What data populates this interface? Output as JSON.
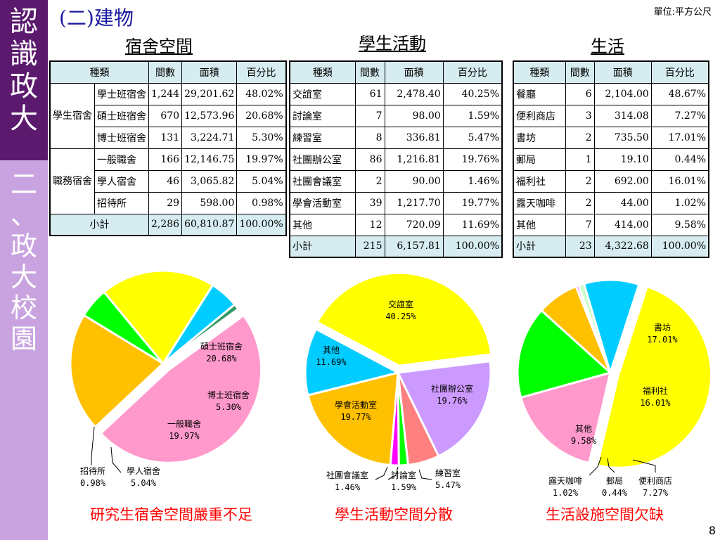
{
  "sidebar": {
    "top_chars": [
      "認",
      "識",
      "政",
      "大"
    ],
    "bottom_chars": [
      "二",
      "、",
      "政",
      "大",
      "校",
      "園"
    ]
  },
  "heading": "(二)建物",
  "unit": "單位:平方公尺",
  "page_number": "8",
  "columns": [
    "種類",
    "間數",
    "面積",
    "百分比"
  ],
  "dorm": {
    "title": "宿舍空間",
    "groups": [
      {
        "label": "學生宿舍",
        "rows": [
          [
            "學士班宿舍",
            "1,244",
            "29,201.62",
            "48.02%"
          ],
          [
            "碩士班宿舍",
            "670",
            "12,573.96",
            "20.68%"
          ],
          [
            "博士班宿舍",
            "131",
            "3,224.71",
            "5.30%"
          ]
        ]
      },
      {
        "label": "職務宿舍",
        "rows": [
          [
            "一般職舍",
            "166",
            "12,146.75",
            "19.97%"
          ],
          [
            "學人宿舍",
            "46",
            "3,065.82",
            "5.04%"
          ],
          [
            "招待所",
            "29",
            "598.00",
            "0.98%"
          ]
        ]
      }
    ],
    "total": [
      "小計",
      "2,286",
      "60,810.87",
      "100.00%"
    ]
  },
  "activity": {
    "title": "學生活動",
    "rows": [
      [
        "交誼室",
        "61",
        "2,478.40",
        "40.25%"
      ],
      [
        "討論室",
        "7",
        "98.00",
        "1.59%"
      ],
      [
        "練習室",
        "8",
        "336.81",
        "5.47%"
      ],
      [
        "社團辦公室",
        "86",
        "1,216.81",
        "19.76%"
      ],
      [
        "社團會議室",
        "2",
        "90.00",
        "1.46%"
      ],
      [
        "學會活動室",
        "39",
        "1,217.70",
        "19.77%"
      ],
      [
        "其他",
        "12",
        "720.09",
        "11.69%"
      ]
    ],
    "total": [
      "小計",
      "215",
      "6,157.81",
      "100.00%"
    ]
  },
  "life": {
    "title": "生活",
    "rows": [
      [
        "餐廳",
        "6",
        "2,104.00",
        "48.67%"
      ],
      [
        "便利商店",
        "3",
        "314.08",
        "7.27%"
      ],
      [
        "書坊",
        "2",
        "735.50",
        "17.01%"
      ],
      [
        "郵局",
        "1",
        "19.10",
        "0.44%"
      ],
      [
        "福利社",
        "2",
        "692.00",
        "16.01%"
      ],
      [
        "露天咖啡",
        "2",
        "44.00",
        "1.02%"
      ],
      [
        "其他",
        "7",
        "414.00",
        "9.58%"
      ]
    ],
    "total": [
      "小計",
      "23",
      "4,322.68",
      "100.00%"
    ]
  },
  "chart_data": [
    {
      "type": "pie",
      "slices": [
        {
          "label": "學士班宿舍",
          "value": 48.02,
          "text": "48.02%",
          "color": "#ff99cc"
        },
        {
          "label": "碩士班宿舍",
          "value": 20.68,
          "text": "20.68%",
          "color": "#ffc000"
        },
        {
          "label": "博士班宿舍",
          "value": 5.3,
          "text": "5.30%",
          "color": "#00ff00"
        },
        {
          "label": "一般職舍",
          "value": 19.97,
          "text": "19.97%",
          "color": "#ffff00"
        },
        {
          "label": "學人宿舍",
          "value": 5.04,
          "text": "5.04%",
          "color": "#00ccff"
        },
        {
          "label": "招待所",
          "value": 0.98,
          "text": "0.98%",
          "color": "#339966"
        }
      ],
      "conclusion": "研究生宿舍空間嚴重不足"
    },
    {
      "type": "pie",
      "slices": [
        {
          "label": "交誼室",
          "value": 40.25,
          "text": "40.25%",
          "color": "#ffff00"
        },
        {
          "label": "社團辦公室",
          "value": 19.76,
          "text": "19.76%",
          "color": "#cc99ff"
        },
        {
          "label": "練習室",
          "value": 5.47,
          "text": "5.47%",
          "color": "#ff8080"
        },
        {
          "label": "討論室",
          "value": 1.59,
          "text": "1.59%",
          "color": "#00ff00"
        },
        {
          "label": "社團會議室",
          "value": 1.46,
          "text": "1.46%",
          "color": "#ff00ff"
        },
        {
          "label": "學會活動室",
          "value": 19.77,
          "text": "19.77%",
          "color": "#ffc000"
        },
        {
          "label": "其他",
          "value": 11.69,
          "text": "11.69%",
          "color": "#00ccff"
        }
      ],
      "conclusion": "學生活動空間分散"
    },
    {
      "type": "pie",
      "slices": [
        {
          "label": "餐廳",
          "value": 48.67,
          "text": "48.67%",
          "color": "#ffff00"
        },
        {
          "label": "書坊",
          "value": 17.01,
          "text": "17.01%",
          "color": "#ff99cc"
        },
        {
          "label": "福利社",
          "value": 16.01,
          "text": "16.01%",
          "color": "#00ff00"
        },
        {
          "label": "便利商店",
          "value": 7.27,
          "text": "7.27%",
          "color": "#ffc000"
        },
        {
          "label": "郵局",
          "value": 0.44,
          "text": "0.44%",
          "color": "#ff00ff"
        },
        {
          "label": "露天咖啡",
          "value": 1.02,
          "text": "1.02%",
          "color": "#ccffcc"
        },
        {
          "label": "其他",
          "value": 9.58,
          "text": "9.58%",
          "color": "#00ccff"
        }
      ],
      "conclusion": "生活設施空間欠缺"
    }
  ]
}
